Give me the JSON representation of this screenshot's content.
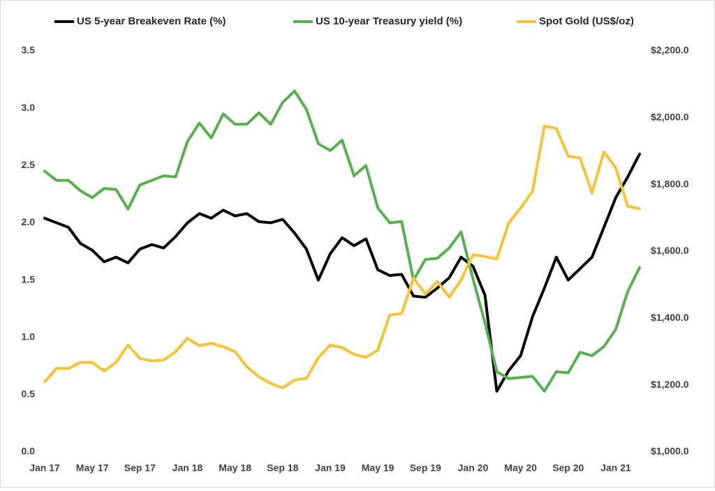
{
  "chart_data": {
    "type": "line",
    "categories": [
      "Jan 17",
      null,
      null,
      null,
      "May 17",
      null,
      null,
      null,
      "Sep 17",
      null,
      null,
      null,
      "Jan 18",
      null,
      null,
      null,
      "May 18",
      null,
      null,
      null,
      "Sep 18",
      null,
      null,
      null,
      "Jan 19",
      null,
      null,
      null,
      "May 19",
      null,
      null,
      null,
      "Sep 19",
      null,
      null,
      null,
      "Jan 20",
      null,
      null,
      null,
      "May 20",
      null,
      null,
      null,
      "Sep 20",
      null,
      null,
      null,
      "Jan 21",
      null,
      null
    ],
    "series": [
      {
        "name": "US 5-year Breakeven Rate (%)",
        "color": "#000000",
        "values": [
          2.04,
          2.0,
          1.96,
          1.82,
          1.76,
          1.66,
          1.7,
          1.65,
          1.77,
          1.81,
          1.78,
          1.88,
          2.0,
          2.08,
          2.04,
          2.11,
          2.06,
          2.08,
          2.01,
          2.0,
          2.03,
          1.91,
          1.77,
          1.5,
          1.73,
          1.87,
          1.8,
          1.86,
          1.59,
          1.54,
          1.55,
          1.36,
          1.35,
          1.43,
          1.52,
          1.7,
          1.62,
          1.37,
          0.53,
          0.71,
          0.84,
          1.18,
          1.43,
          1.7,
          1.5,
          1.6,
          1.7,
          1.96,
          2.22,
          2.4,
          2.6
        ]
      },
      {
        "name": "US 10-year Treasury yield (%)",
        "color": "#56b04b",
        "values": [
          2.45,
          2.37,
          2.37,
          2.28,
          2.22,
          2.3,
          2.29,
          2.12,
          2.33,
          2.37,
          2.41,
          2.4,
          2.71,
          2.87,
          2.74,
          2.95,
          2.86,
          2.86,
          2.96,
          2.86,
          3.05,
          3.15,
          2.99,
          2.69,
          2.63,
          2.72,
          2.41,
          2.5,
          2.13,
          2.0,
          2.01,
          1.5,
          1.68,
          1.69,
          1.78,
          1.92,
          1.51,
          1.13,
          0.7,
          0.64,
          0.65,
          0.66,
          0.53,
          0.7,
          0.69,
          0.87,
          0.84,
          0.92,
          1.07,
          1.4,
          1.61
        ]
      },
      {
        "name": "Spot Gold (US$/oz)",
        "color": "#f7c236",
        "axis": "y2",
        "values": [
          1210,
          1250,
          1250,
          1268,
          1268,
          1242,
          1268,
          1320,
          1280,
          1272,
          1275,
          1300,
          1340,
          1318,
          1325,
          1315,
          1300,
          1255,
          1225,
          1205,
          1192,
          1215,
          1220,
          1282,
          1320,
          1312,
          1292,
          1283,
          1305,
          1410,
          1414,
          1520,
          1472,
          1510,
          1463,
          1515,
          1590,
          1585,
          1577,
          1685,
          1730,
          1780,
          1975,
          1968,
          1885,
          1880,
          1775,
          1898,
          1850,
          1735,
          1728
        ]
      }
    ],
    "ylim": [
      0,
      3.5
    ],
    "yticks": [
      {
        "value": 0,
        "label": "0.0"
      },
      {
        "value": 0.5,
        "label": "0.5"
      },
      {
        "value": 1,
        "label": "1.0"
      },
      {
        "value": 1.5,
        "label": "1.5"
      },
      {
        "value": 2,
        "label": "2.0"
      },
      {
        "value": 2.5,
        "label": "2.5"
      },
      {
        "value": 3,
        "label": "3.0"
      },
      {
        "value": 3.5,
        "label": "3.5"
      }
    ],
    "y2lim": [
      1000,
      2200
    ],
    "y2ticks": [
      {
        "value": 1000,
        "label": "$1,000.0"
      },
      {
        "value": 1200,
        "label": "$1,200.0"
      },
      {
        "value": 1400,
        "label": "$1,400.0"
      },
      {
        "value": 1600,
        "label": "$1,600.0"
      },
      {
        "value": 1800,
        "label": "$1,800.0"
      },
      {
        "value": 2000,
        "label": "$2,000.0"
      },
      {
        "value": 2200,
        "label": "$2,200.0"
      }
    ],
    "grid": false,
    "legend": "top"
  }
}
